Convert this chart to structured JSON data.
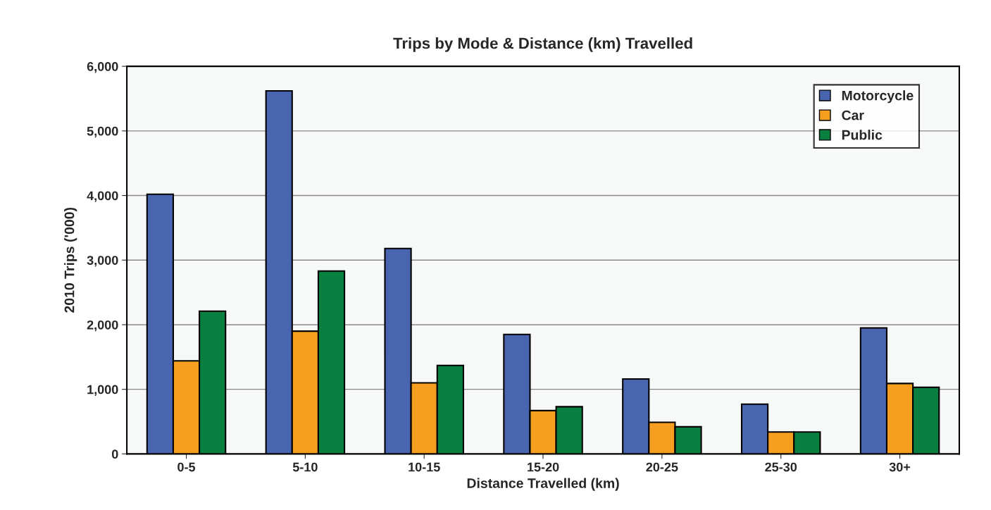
{
  "chart_data": {
    "type": "bar",
    "title": "Trips by Mode & Distance (km) Travelled",
    "xlabel": "Distance Travelled (km)",
    "ylabel": "2010 Trips ('000)",
    "categories": [
      "0-5",
      "5-10",
      "10-15",
      "15-20",
      "20-25",
      "25-30",
      "30+"
    ],
    "series": [
      {
        "name": "Motorcycle",
        "color": "#4a65b0",
        "values": [
          4020,
          5620,
          3180,
          1850,
          1160,
          770,
          1950
        ]
      },
      {
        "name": "Car",
        "color": "#f59e20",
        "values": [
          1440,
          1900,
          1100,
          670,
          490,
          340,
          1090
        ]
      },
      {
        "name": "Public",
        "color": "#0a8040",
        "values": [
          2210,
          2830,
          1370,
          730,
          420,
          340,
          1030
        ]
      }
    ],
    "ylim": [
      0,
      6000
    ],
    "yticks": [
      {
        "value": 0,
        "label": "0"
      },
      {
        "value": 1000,
        "label": "1,000"
      },
      {
        "value": 2000,
        "label": "2,000"
      },
      {
        "value": 3000,
        "label": "3,000"
      },
      {
        "value": 4000,
        "label": "4,000"
      },
      {
        "value": 5000,
        "label": "5,000"
      },
      {
        "value": 6000,
        "label": "6,000"
      }
    ],
    "grid": "y",
    "legend": "top right"
  }
}
